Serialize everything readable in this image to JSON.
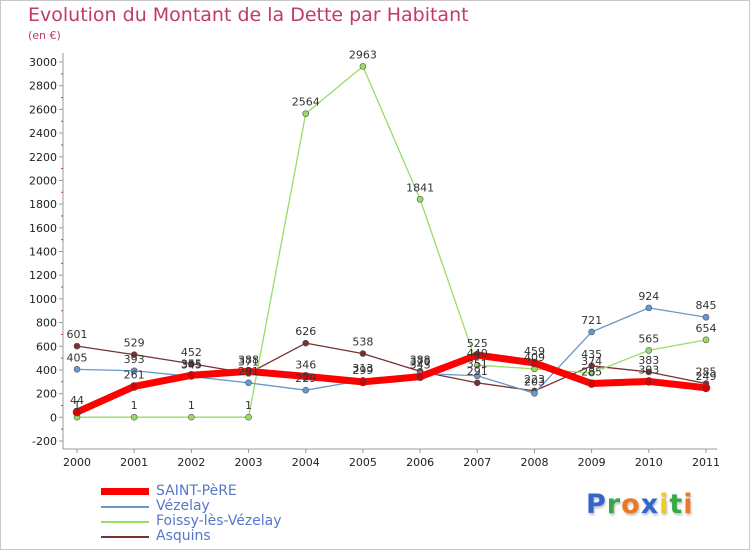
{
  "chart_data": {
    "type": "line",
    "title": "Evolution du Montant de la Dette par Habitant",
    "subtitle": "(en €)",
    "xlabel": "",
    "ylabel": "",
    "x": [
      "2000",
      "2001",
      "2002",
      "2003",
      "2004",
      "2005",
      "2006",
      "2007",
      "2008",
      "2009",
      "2010",
      "2011"
    ],
    "ylim": [
      -200,
      3000
    ],
    "yticks": [
      "-200",
      "0",
      "200",
      "400",
      "600",
      "800",
      "1000",
      "1200",
      "1400",
      "1600",
      "1800",
      "2000",
      "2200",
      "2400",
      "2600",
      "2800",
      "3000"
    ],
    "grid": false,
    "legend_position": "bottom-left",
    "series": [
      {
        "name": "SAINT-PèRE",
        "color": "#ff0000",
        "values": [
          44,
          261,
          355,
          388,
          346,
          299,
          343,
          525,
          459,
          285,
          303,
          249
        ]
      },
      {
        "name": "Vézelay",
        "color": "#6699cc",
        "values": [
          405,
          393,
          345,
          291,
          229,
          313,
          370,
          351,
          203,
          721,
          924,
          845
        ]
      },
      {
        "name": "Foissy-lès-Vézelay",
        "color": "#99dd66",
        "values": [
          1,
          1,
          1,
          1,
          2564,
          2963,
          1841,
          440,
          409,
          374,
          565,
          654
        ]
      },
      {
        "name": "Asquins",
        "color": "#773333",
        "values": [
          601,
          529,
          452,
          371,
          626,
          538,
          388,
          291,
          223,
          435,
          383,
          285
        ]
      }
    ]
  },
  "logo": {
    "letters": [
      "P",
      "r",
      "o",
      "x",
      "i",
      "t",
      "i"
    ],
    "colors": [
      "#3366cc",
      "#33aa44",
      "#ee7722",
      "#3366cc",
      "#eecc22",
      "#33aa44",
      "#ee7722"
    ]
  }
}
